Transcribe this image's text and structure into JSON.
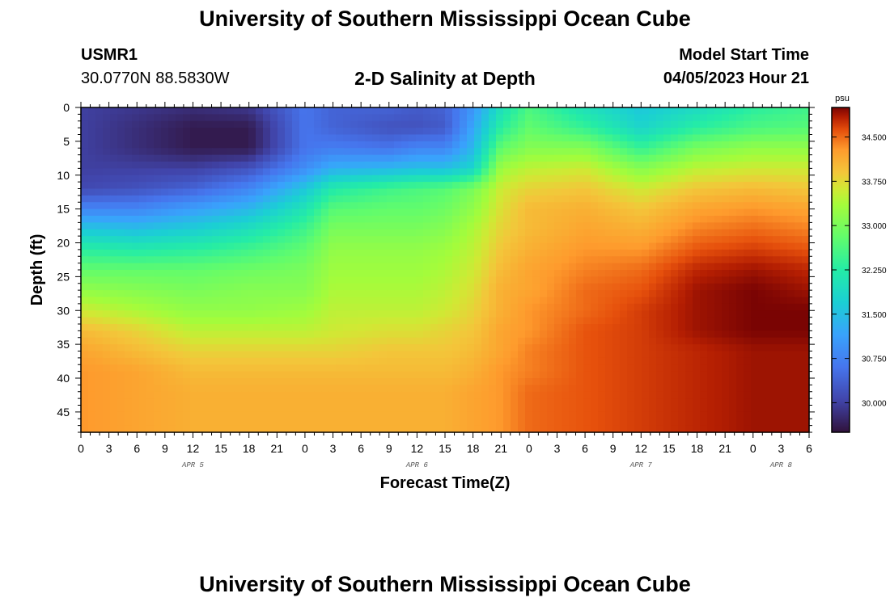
{
  "header": {
    "title": "University of Southern Mississippi Ocean Cube",
    "station_id": "USMR1",
    "station_coords": "30.0770N  88.5830W",
    "plot_name": "2-D Salinity at Depth",
    "model_start_label": "Model Start Time",
    "model_start_value": "04/05/2023 Hour 21"
  },
  "footer": {
    "title": "University of Southern Mississippi Ocean Cube"
  },
  "chart_data": {
    "type": "heatmap",
    "title": "2-D Salinity at Depth",
    "xlabel": "Forecast Time(Z)",
    "ylabel": "Depth (ft)",
    "x_range_hours": [
      0,
      78
    ],
    "y_range_ft": [
      0,
      48
    ],
    "x_ticks": [
      {
        "h": 0,
        "label": "0"
      },
      {
        "h": 3,
        "label": "3"
      },
      {
        "h": 6,
        "label": "6"
      },
      {
        "h": 9,
        "label": "9"
      },
      {
        "h": 12,
        "label": "12"
      },
      {
        "h": 15,
        "label": "15"
      },
      {
        "h": 18,
        "label": "18"
      },
      {
        "h": 21,
        "label": "21"
      },
      {
        "h": 24,
        "label": "0"
      },
      {
        "h": 27,
        "label": "3"
      },
      {
        "h": 30,
        "label": "6"
      },
      {
        "h": 33,
        "label": "9"
      },
      {
        "h": 36,
        "label": "12"
      },
      {
        "h": 39,
        "label": "15"
      },
      {
        "h": 42,
        "label": "18"
      },
      {
        "h": 45,
        "label": "21"
      },
      {
        "h": 48,
        "label": "0"
      },
      {
        "h": 51,
        "label": "3"
      },
      {
        "h": 54,
        "label": "6"
      },
      {
        "h": 57,
        "label": "9"
      },
      {
        "h": 60,
        "label": "12"
      },
      {
        "h": 63,
        "label": "15"
      },
      {
        "h": 66,
        "label": "18"
      },
      {
        "h": 69,
        "label": "21"
      },
      {
        "h": 72,
        "label": "0"
      },
      {
        "h": 75,
        "label": "3"
      },
      {
        "h": 78,
        "label": "6"
      }
    ],
    "date_labels": [
      {
        "h": 12,
        "label": "APR 5"
      },
      {
        "h": 36,
        "label": "APR 6"
      },
      {
        "h": 60,
        "label": "APR 7"
      },
      {
        "h": 75,
        "label": "APR 8"
      }
    ],
    "y_ticks": [
      0,
      5,
      10,
      15,
      20,
      25,
      30,
      35,
      40,
      45
    ],
    "colorbar": {
      "unit": "psu",
      "range": [
        29.5,
        35.0
      ],
      "ticks": [
        "30.000",
        "30.750",
        "31.500",
        "32.250",
        "33.000",
        "33.750",
        "34.500"
      ]
    },
    "hours": [
      0,
      6,
      12,
      18,
      24,
      27,
      33,
      36,
      39,
      42,
      45,
      48,
      54,
      60,
      66,
      72,
      78
    ],
    "depths": [
      0,
      3,
      6,
      9,
      12,
      15,
      18,
      21,
      24,
      27,
      30,
      33,
      36,
      39,
      42,
      45,
      48
    ],
    "salinity": [
      [
        30.0,
        29.9,
        29.8,
        29.9,
        30.6,
        30.4,
        30.4,
        30.3,
        30.4,
        31.0,
        32.0,
        32.6,
        32.0,
        31.6,
        31.9,
        32.3,
        32.5
      ],
      [
        30.0,
        29.8,
        29.6,
        29.6,
        30.6,
        30.4,
        30.2,
        30.2,
        30.3,
        31.2,
        32.3,
        32.8,
        32.4,
        31.8,
        32.3,
        32.6,
        32.7
      ],
      [
        30.0,
        29.8,
        29.6,
        29.6,
        30.6,
        30.7,
        30.6,
        30.8,
        30.8,
        31.4,
        32.8,
        33.1,
        33.1,
        32.4,
        33.0,
        33.2,
        33.2
      ],
      [
        30.0,
        30.0,
        30.0,
        30.2,
        30.9,
        31.3,
        31.4,
        31.5,
        31.5,
        31.8,
        33.3,
        33.5,
        33.6,
        33.1,
        33.5,
        33.6,
        33.6
      ],
      [
        30.1,
        30.2,
        30.4,
        30.8,
        31.6,
        32.2,
        32.5,
        32.6,
        32.7,
        33.0,
        33.6,
        33.8,
        33.9,
        33.6,
        33.9,
        34.0,
        33.9
      ],
      [
        30.8,
        30.8,
        31.1,
        31.4,
        32.1,
        32.7,
        32.8,
        32.8,
        32.9,
        33.2,
        33.7,
        34.0,
        34.1,
        33.9,
        34.2,
        34.3,
        34.2
      ],
      [
        31.6,
        31.5,
        31.7,
        32.0,
        32.5,
        33.0,
        33.0,
        33.0,
        33.1,
        33.4,
        33.8,
        34.0,
        34.2,
        34.1,
        34.4,
        34.5,
        34.4
      ],
      [
        32.3,
        32.2,
        32.3,
        32.5,
        32.8,
        33.2,
        33.2,
        33.2,
        33.3,
        33.5,
        33.9,
        34.1,
        34.3,
        34.3,
        34.6,
        34.7,
        34.6
      ],
      [
        32.8,
        32.8,
        32.8,
        32.9,
        33.0,
        33.3,
        33.3,
        33.3,
        33.4,
        33.6,
        34.0,
        34.2,
        34.4,
        34.5,
        34.8,
        34.9,
        34.8
      ],
      [
        33.2,
        33.1,
        33.0,
        33.1,
        33.1,
        33.4,
        33.4,
        33.4,
        33.5,
        33.7,
        34.1,
        34.2,
        34.5,
        34.6,
        34.9,
        35.0,
        34.9
      ],
      [
        33.6,
        33.4,
        33.2,
        33.2,
        33.3,
        33.5,
        33.5,
        33.5,
        33.6,
        33.8,
        34.1,
        34.3,
        34.5,
        34.7,
        34.9,
        35.0,
        35.0
      ],
      [
        34.0,
        33.8,
        33.5,
        33.5,
        33.5,
        33.6,
        33.7,
        33.7,
        33.8,
        33.9,
        34.2,
        34.3,
        34.6,
        34.7,
        34.9,
        35.0,
        35.0
      ],
      [
        34.2,
        34.0,
        33.8,
        33.8,
        33.8,
        33.8,
        33.9,
        33.9,
        33.9,
        34.0,
        34.2,
        34.4,
        34.6,
        34.7,
        34.8,
        34.9,
        34.9
      ],
      [
        34.3,
        34.2,
        34.0,
        34.0,
        34.0,
        34.0,
        34.0,
        34.0,
        34.0,
        34.1,
        34.3,
        34.4,
        34.6,
        34.7,
        34.8,
        34.9,
        34.9
      ],
      [
        34.3,
        34.2,
        34.1,
        34.1,
        34.1,
        34.1,
        34.1,
        34.1,
        34.1,
        34.2,
        34.3,
        34.5,
        34.6,
        34.7,
        34.8,
        34.9,
        34.9
      ],
      [
        34.3,
        34.2,
        34.1,
        34.1,
        34.1,
        34.1,
        34.1,
        34.1,
        34.1,
        34.2,
        34.3,
        34.5,
        34.6,
        34.7,
        34.8,
        34.9,
        34.9
      ],
      [
        34.3,
        34.2,
        34.1,
        34.1,
        34.1,
        34.1,
        34.1,
        34.1,
        34.1,
        34.2,
        34.3,
        34.5,
        34.6,
        34.7,
        34.8,
        34.9,
        34.9
      ]
    ]
  }
}
